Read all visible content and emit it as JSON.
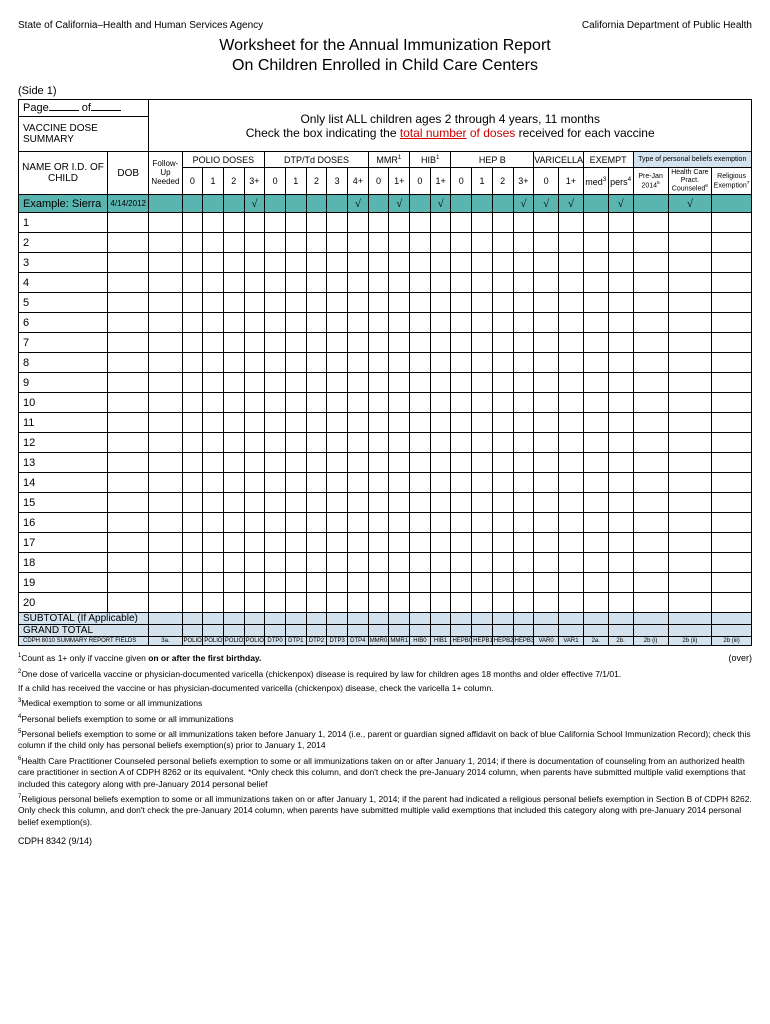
{
  "header": {
    "agency_left": "State of California–Health and Human Services Agency",
    "agency_right": "California Department of Public Health",
    "title1": "Worksheet for the Annual Immunization Report",
    "title2": "On Children Enrolled in Child Care Centers",
    "side": "(Side 1)"
  },
  "page": {
    "label": "Page",
    "of": "of"
  },
  "instr": {
    "line1": "Only list ALL children ages 2 through 4 years, 11 months",
    "line2a": "Check the box indicating the ",
    "line2b": "total number",
    "line2c": " of doses",
    "line2d": " received for each vaccine"
  },
  "section_vds": "VACCINE DOSE SUMMARY",
  "groups": {
    "polio": "POLIO DOSES",
    "dtp": "DTP/Td DOSES",
    "mmr": "MMR",
    "hib": "HIB",
    "hepb": "HEP B",
    "varicella": "VARICELLA",
    "exempt": "EXEMPT",
    "exempt_type": "Type of personal beliefs exemption"
  },
  "cols": {
    "name": "NAME OR I.D. OF CHILD",
    "dob": "DOB",
    "followup": "Follow-Up Needed",
    "polio": [
      "0",
      "1",
      "2",
      "3+"
    ],
    "dtp": [
      "0",
      "1",
      "2",
      "3",
      "4+"
    ],
    "mmr": [
      "0",
      "1+"
    ],
    "hib": [
      "0",
      "1+"
    ],
    "hepb": [
      "0",
      "1",
      "2",
      "3+"
    ],
    "var": [
      "0",
      "1+"
    ],
    "exempt": [
      "med",
      "pers"
    ],
    "exempt_sub": [
      "Pre-Jan 2014",
      "Health Care Pract. Counseled",
      "Religious Exemption"
    ]
  },
  "sup": {
    "mmr": "1",
    "hib": "1",
    "var": "2",
    "med": "3",
    "pers": "4",
    "prejan": "5",
    "hcp": "6",
    "rel": "7"
  },
  "example": {
    "label": "Example:  Sierra",
    "dob": "4/14/2012",
    "checks": {
      "polio_3": "√",
      "dtp_4": "√",
      "mmr_1": "√",
      "hib_1": "√",
      "hepb_3": "√",
      "var_0": "√",
      "var_1": "√",
      "pers": "√",
      "hcp": "√"
    }
  },
  "rows": 20,
  "bottom": {
    "subtotal": "SUBTOTAL   (If Applicable)",
    "grand": "GRAND TOTAL",
    "summary_label": "CDPH 8010 SUMMARY REPORT FIELDS",
    "summary": {
      "followup": "3a.",
      "polio": [
        "POLIO0",
        "POLIO1",
        "POLIO2",
        "POLIO3"
      ],
      "dtp": [
        "DTP0",
        "DTP1",
        "DTP2",
        "DTP3",
        "DTP4"
      ],
      "mmr": [
        "MMR0",
        "MMR1"
      ],
      "hib": [
        "HIB0",
        "HIB1"
      ],
      "hepb": [
        "HEPB0",
        "HEPB1",
        "HEPB2",
        "HEPB3"
      ],
      "var": [
        "VAR0",
        "VAR1"
      ],
      "exempt": [
        "2a.",
        "2b."
      ],
      "exempt_sub": [
        "2b (i)",
        "2b (ii)",
        "2b (iii)"
      ]
    }
  },
  "footnotes": {
    "n1": "Count as 1+ only if vaccine given ",
    "n1b": "on or after the first birthday.",
    "over": "(over)",
    "n2": "One dose of varicella vaccine or physician-documented varicella (chickenpox) disease is required by law for children ages 18 months and older effective 7/1/01.",
    "n2b": "If a child has received the vaccine or has physician-documented varicella (chickenpox) disease, check the varicella 1+ column.",
    "n3": "Medical exemption to some or all immunizations",
    "n4": "Personal beliefs exemption to some or all immunizations",
    "n5": "Personal beliefs exemption to some or all immunizations taken before January 1, 2014 (i.e., parent or guardian signed affidavit on back of blue California School Immunization Record); check this column if the child only has personal beliefs exemption(s) prior to  January 1, 2014",
    "n6": "Health Care Practitioner Counseled personal beliefs exemption to some or all immunizations taken on or after January 1, 2014; if there is documentation of counseling from an authorized health care practitioner in section A of CDPH 8262 or its equivalent. *Only check  this column, and don't check the pre-January 2014 column,  when parents have submitted multiple valid exemptions that included this category along with pre-January 2014 personal belief",
    "n7": "Religious personal beliefs exemption to some or all immunizations taken on or after January 1, 2014; if the parent had indicated a  religious personal beliefs exemption in Section B of CDPH 8262.  Only check  this column, and don't check the pre-January 2014 column,  when parents have submitted multiple valid exemptions that included this category along with pre-January 2014 personal belief exemption(s)."
  },
  "form_id": "CDPH 8342  (9/14)"
}
